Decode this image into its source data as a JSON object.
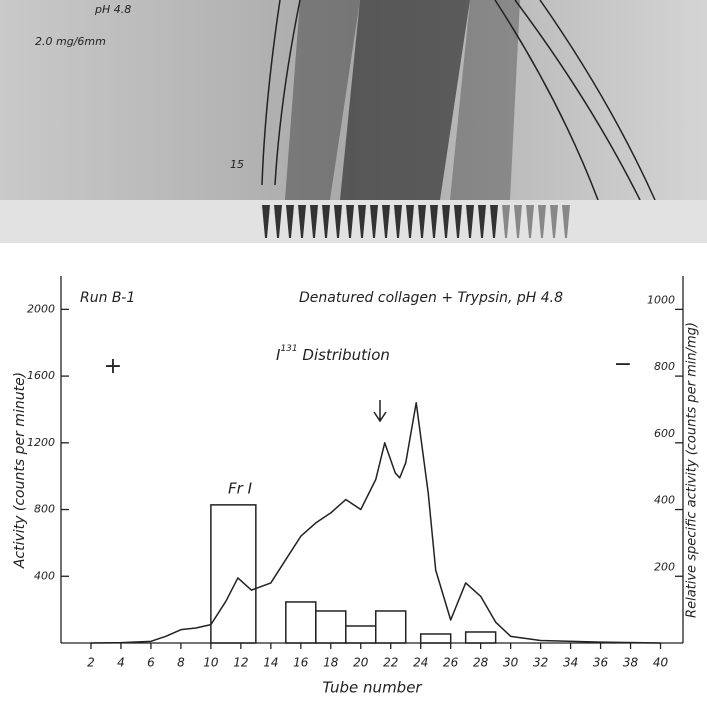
{
  "photo": {
    "labels": [
      "pH 4.8",
      "2.0 mg/6mm",
      "15"
    ]
  },
  "chart_data": {
    "type": "bar_line",
    "title": "Denatured collagen + Trypsin, pH 4.8",
    "run_label": "Run B-1",
    "subtitle": {
      "base": "I",
      "sup": "131",
      "rest": " Distribution"
    },
    "annotations": {
      "plus": "+",
      "minus": "−",
      "fraction": "Fr I"
    },
    "xlabel": "Tube number",
    "ylabel": "Activity (counts per minute)",
    "y2label": "Relative specific activity (counts per min/mg)",
    "xlim": [
      0,
      41.5
    ],
    "xticks": [
      2,
      4,
      6,
      8,
      10,
      12,
      14,
      16,
      18,
      20,
      22,
      24,
      26,
      28,
      30,
      32,
      34,
      36,
      38,
      40
    ],
    "ylim": [
      0,
      2200
    ],
    "yticks": [
      400,
      800,
      1200,
      1600,
      2000
    ],
    "y2lim": [
      0,
      1100
    ],
    "y2ticks": [
      200,
      400,
      600,
      800,
      1000
    ],
    "line": {
      "color": "#222",
      "x": [
        2,
        4,
        6,
        7,
        8,
        9,
        10,
        11,
        11.8,
        12.7,
        14,
        15,
        16,
        17,
        18,
        19,
        20,
        21,
        21.6,
        22.3,
        22.6,
        23,
        23.7,
        24.5,
        25,
        26,
        27,
        28,
        29,
        30,
        32,
        36,
        40
      ],
      "values": [
        0,
        2,
        10,
        40,
        80,
        90,
        110,
        250,
        390,
        317,
        360,
        500,
        640,
        720,
        780,
        860,
        800,
        980,
        1200,
        1020,
        990,
        1080,
        1440,
        900,
        437,
        138,
        360,
        280,
        125,
        40,
        15,
        5,
        0
      ]
    },
    "bars": {
      "color": "#222",
      "axis": "y2",
      "from": [
        10,
        15,
        17,
        19,
        21,
        24,
        27
      ],
      "to": [
        13,
        17,
        19,
        21,
        23,
        26,
        29
      ],
      "values": [
        414,
        123,
        96,
        51,
        96,
        27,
        33
      ]
    }
  }
}
